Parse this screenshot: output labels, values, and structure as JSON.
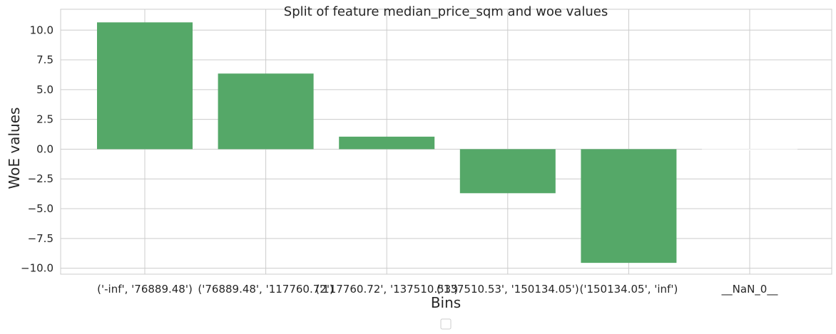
{
  "chart_data": {
    "type": "bar",
    "title": "Split of feature median_price_sqm and woe values",
    "xlabel": "Bins",
    "ylabel": "WoE values",
    "categories": [
      "('-inf', '76889.48')",
      "('76889.48', '117760.72')",
      "('117760.72', '137510.53')",
      "('137510.53', '150134.05')",
      "('150134.05', 'inf')",
      "__NaN_0__"
    ],
    "values": [
      10.65,
      6.35,
      1.05,
      -3.7,
      -9.55,
      0.0
    ],
    "ylim": [
      -10.5,
      11.75
    ],
    "yticks": [
      -10.0,
      -7.5,
      -5.0,
      -2.5,
      0.0,
      2.5,
      5.0,
      7.5,
      10.0
    ],
    "ytick_labels": [
      "−10.0",
      "−7.5",
      "−5.0",
      "−2.5",
      "0.0",
      "2.5",
      "5.0",
      "7.5",
      "10.0"
    ],
    "grid": true,
    "bar_color": "#55a868",
    "legend": "bottom-center"
  }
}
